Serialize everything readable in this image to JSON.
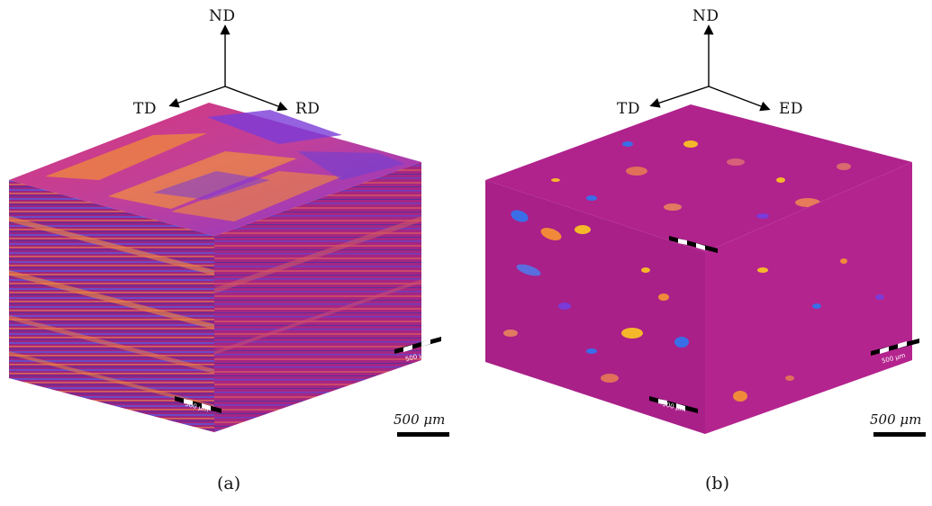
{
  "panel_a": {
    "axes": {
      "up": "ND",
      "left": "TD",
      "right": "RD"
    },
    "scale_bar_label": "500 μm",
    "face_scale_bar_label": "500 μm",
    "caption": "(a)"
  },
  "panel_b": {
    "axes": {
      "up": "ND",
      "left": "TD",
      "right": "ED"
    },
    "scale_bar_label": "500 μm",
    "face_scale_bar_label": "500 μm",
    "caption": "(b)"
  },
  "colors": {
    "matrix_magenta": "#b0228c",
    "orange_grain": "#f08a3a",
    "violet_grain": "#7a3bd8",
    "blue_grain": "#3a6ee8",
    "yellow_grain": "#f5b82a"
  }
}
